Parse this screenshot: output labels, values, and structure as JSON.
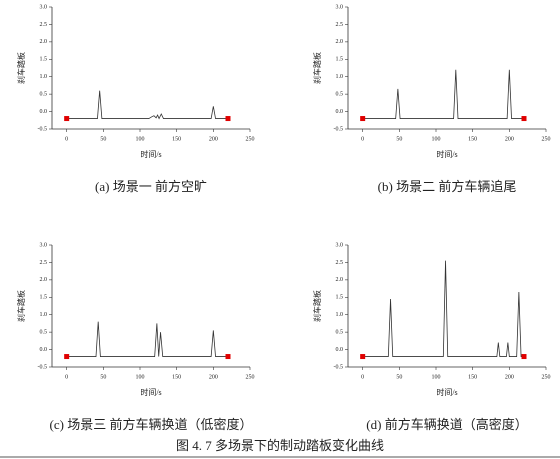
{
  "caption": "图 4. 7 多场景下的制动踏板变化曲线",
  "chart_data": [
    {
      "type": "line",
      "caption": "(a)  场景一  前方空旷",
      "xlabel": "时间/s",
      "ylabel": "刹车踏板",
      "xlim": [
        -20,
        250
      ],
      "ylim": [
        -0.5,
        3.0
      ],
      "xticks": [
        0,
        50,
        100,
        150,
        200,
        250
      ],
      "yticks": [
        {
          "value": -0.5,
          "label": "-0.5"
        },
        {
          "value": 0,
          "label": "0.0"
        },
        {
          "value": 0.5,
          "label": "0.5"
        },
        {
          "value": 1,
          "label": "1.0"
        },
        {
          "value": 1.5,
          "label": "1.5"
        },
        {
          "value": 2,
          "label": "2.0"
        },
        {
          "value": 2.5,
          "label": "2.5"
        },
        {
          "value": 3,
          "label": "3.0"
        }
      ],
      "series": [
        {
          "color": "#333333",
          "x": [
            0,
            42,
            45,
            48,
            112,
            116,
            119,
            122,
            124,
            126,
            129,
            132,
            197,
            200,
            203,
            220
          ],
          "values": [
            -0.2,
            -0.2,
            0.6,
            -0.2,
            -0.2,
            -0.15,
            -0.12,
            -0.18,
            -0.1,
            -0.2,
            -0.07,
            -0.2,
            -0.2,
            0.15,
            -0.2,
            -0.2
          ]
        },
        {
          "color": "#e00000",
          "marker": "square",
          "x": [
            0,
            220
          ],
          "values": [
            -0.2,
            -0.2
          ]
        }
      ]
    },
    {
      "type": "line",
      "caption": "(b)  场景二  前方车辆追尾",
      "xlabel": "时间/s",
      "ylabel": "刹车踏板",
      "xlim": [
        -20,
        250
      ],
      "ylim": [
        -0.5,
        3.0
      ],
      "xticks": [
        0,
        50,
        100,
        150,
        200,
        250
      ],
      "yticks": [
        {
          "value": -0.5,
          "label": "-0.5"
        },
        {
          "value": 0,
          "label": "0.0"
        },
        {
          "value": 0.5,
          "label": "0.5"
        },
        {
          "value": 1,
          "label": "1.0"
        },
        {
          "value": 1.5,
          "label": "1.5"
        },
        {
          "value": 2,
          "label": "2.0"
        },
        {
          "value": 2.5,
          "label": "2.5"
        },
        {
          "value": 3,
          "label": "3.0"
        }
      ],
      "series": [
        {
          "color": "#333333",
          "x": [
            0,
            45,
            48,
            51,
            124,
            127,
            130,
            197,
            200,
            203,
            220
          ],
          "values": [
            -0.2,
            -0.2,
            0.65,
            -0.2,
            -0.2,
            1.2,
            -0.2,
            -0.2,
            1.2,
            -0.2,
            -0.2
          ]
        },
        {
          "color": "#e00000",
          "marker": "square",
          "x": [
            0,
            220
          ],
          "values": [
            -0.2,
            -0.2
          ]
        }
      ]
    },
    {
      "type": "line",
      "caption": "(c)  场景三  前方车辆换道（低密度）",
      "xlabel": "时间/s",
      "ylabel": "刹车踏板",
      "xlim": [
        -20,
        250
      ],
      "ylim": [
        -0.5,
        3.0
      ],
      "xticks": [
        0,
        50,
        100,
        150,
        200,
        250
      ],
      "yticks": [
        {
          "value": -0.5,
          "label": "-0.5"
        },
        {
          "value": 0,
          "label": "0.0"
        },
        {
          "value": 0.5,
          "label": "0.5"
        },
        {
          "value": 1,
          "label": "1.0"
        },
        {
          "value": 1.5,
          "label": "1.5"
        },
        {
          "value": 2,
          "label": "2.0"
        },
        {
          "value": 2.5,
          "label": "2.5"
        },
        {
          "value": 3,
          "label": "3.0"
        }
      ],
      "series": [
        {
          "color": "#333333",
          "x": [
            0,
            40,
            43,
            46,
            120,
            123,
            125.5,
            128,
            131,
            197,
            200,
            203,
            220
          ],
          "values": [
            -0.2,
            -0.2,
            0.8,
            -0.2,
            -0.2,
            0.75,
            -0.2,
            0.5,
            -0.2,
            -0.2,
            0.55,
            -0.2,
            -0.2
          ]
        },
        {
          "color": "#e00000",
          "marker": "square",
          "x": [
            0,
            220
          ],
          "values": [
            -0.2,
            -0.2
          ]
        }
      ]
    },
    {
      "type": "line",
      "caption": "(d)  前方车辆换道（高密度）",
      "xlabel": "时间/s",
      "ylabel": "刹车踏板",
      "xlim": [
        -20,
        250
      ],
      "ylim": [
        -0.5,
        3.0
      ],
      "xticks": [
        0,
        50,
        100,
        150,
        200,
        250
      ],
      "yticks": [
        {
          "value": -0.5,
          "label": "-0.5"
        },
        {
          "value": 0,
          "label": "0.0"
        },
        {
          "value": 0.5,
          "label": "0.5"
        },
        {
          "value": 1,
          "label": "1.0"
        },
        {
          "value": 1.5,
          "label": "1.5"
        },
        {
          "value": 2,
          "label": "2.0"
        },
        {
          "value": 2.5,
          "label": "2.5"
        },
        {
          "value": 3,
          "label": "3.0"
        }
      ],
      "series": [
        {
          "color": "#333333",
          "x": [
            0,
            35,
            38,
            41,
            110,
            113,
            116,
            183,
            185,
            187,
            196,
            198,
            200,
            210,
            213,
            216,
            220
          ],
          "values": [
            -0.2,
            -0.2,
            1.45,
            -0.2,
            -0.2,
            2.55,
            -0.2,
            -0.2,
            0.2,
            -0.2,
            -0.2,
            0.2,
            -0.2,
            -0.2,
            1.65,
            -0.2,
            -0.2
          ]
        },
        {
          "color": "#e00000",
          "marker": "square",
          "x": [
            0,
            220
          ],
          "values": [
            -0.2,
            -0.2
          ]
        }
      ]
    }
  ]
}
